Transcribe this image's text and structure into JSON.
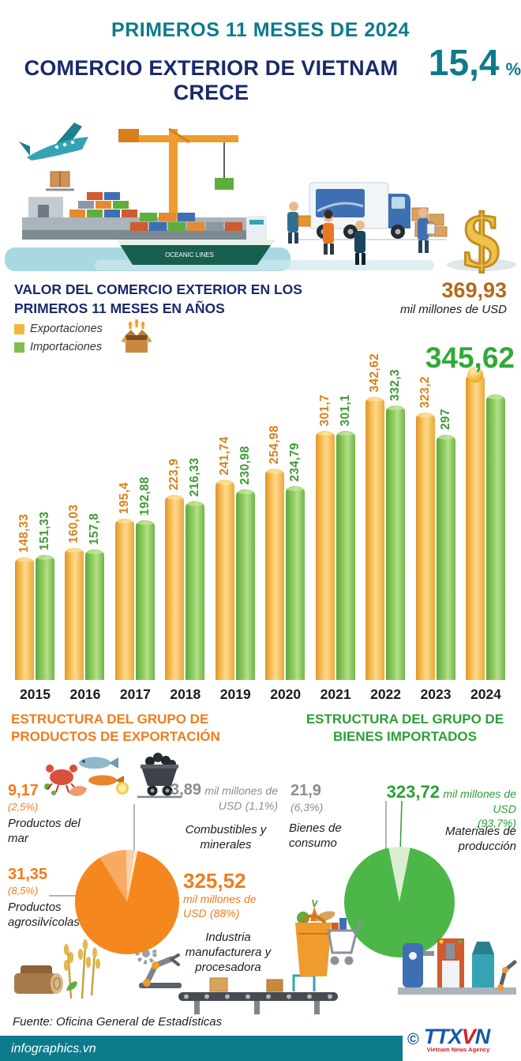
{
  "header": {
    "kicker": "PRIMEROS 11 MESES DE 2024",
    "title": "COMERCIO EXTERIOR DE VIETNAM CRECE",
    "growth_value": "15,4",
    "growth_unit": "%"
  },
  "colors": {
    "teal": "#0d7b8c",
    "navy": "#1b2a6b",
    "export_orange": "#f5b63f",
    "import_green": "#7dbf4e",
    "section_orange": "#f07c1e",
    "section_green": "#2e9e38",
    "top_value_bronze": "#b2691c"
  },
  "illustration": {
    "ship_label": "OCEANIC LINES"
  },
  "chart_section": {
    "title_line1": "VALOR DEL COMERCIO EXTERIOR EN LOS",
    "title_line2": "PRIMEROS 11 MESES EN AÑOS",
    "top_value": "369,93",
    "top_value_unit": "mil millones de USD",
    "big_import_value": "345,62",
    "legend": [
      {
        "label": "Exportaciones",
        "color": "#f5b63f"
      },
      {
        "label": "Importaciones",
        "color": "#7dbf4e"
      }
    ]
  },
  "chart_data": [
    {
      "type": "bar",
      "title": "Valor del comercio exterior en los primeros 11 meses en años",
      "unit": "mil millones de USD",
      "categories": [
        "2015",
        "2016",
        "2017",
        "2018",
        "2019",
        "2020",
        "2021",
        "2022",
        "2023",
        "2024"
      ],
      "series": [
        {
          "name": "Exportaciones",
          "color": "#f5b63f",
          "values": [
            148.33,
            160.03,
            195.4,
            223.9,
            241.74,
            254.98,
            301.7,
            342.62,
            323.2,
            369.93
          ],
          "labels": [
            "148,33",
            "160,03",
            "195,4",
            "223,9",
            "241,74",
            "254,98",
            "301,7",
            "342,62",
            "323,2",
            "369,93"
          ]
        },
        {
          "name": "Importaciones",
          "color": "#7dbf4e",
          "values": [
            151.33,
            157.8,
            192.88,
            216.33,
            230.98,
            234.79,
            301.1,
            332.3,
            297,
            345.62
          ],
          "labels": [
            "151,33",
            "157,8",
            "192,88",
            "216,33",
            "230,98",
            "234,79",
            "301,1",
            "332,3",
            "297",
            "345,62"
          ]
        }
      ],
      "ylim": [
        0,
        375
      ],
      "grid": false,
      "legend_position": "top-left",
      "big_label_indices": [
        9
      ]
    },
    {
      "type": "pie",
      "title": "Estructura del grupo de productos de exportación",
      "unit": "mil millones de USD",
      "start_angle_deg": 11.6,
      "slices": [
        {
          "label": "Industria manufacturera y procesadora",
          "value": 325.52,
          "pct": 88,
          "color": "#f5871f"
        },
        {
          "label": "Productos agrosilvícolas",
          "value": 31.35,
          "pct": 8.5,
          "color": "#f8ab60"
        },
        {
          "label": "Productos del mar",
          "value": 9.17,
          "pct": 2.5,
          "color": "#fbd0a6"
        },
        {
          "label": "Combustibles y minerales",
          "value": 3.89,
          "pct": 1.1,
          "color": "#fde9d4"
        }
      ]
    },
    {
      "type": "pie",
      "title": "Estructura del grupo de bienes importados",
      "unit": "mil millones de USD",
      "start_angle_deg": 11.3,
      "slices": [
        {
          "label": "Materiales de producción",
          "value": 323.72,
          "pct": 93.7,
          "color": "#4cb748"
        },
        {
          "label": "Bienes de consumo",
          "value": 21.9,
          "pct": 6.3,
          "color": "#daeed2"
        }
      ]
    }
  ],
  "export_section": {
    "title_line1": "ESTRUCTURA DEL GRUPO DE",
    "title_line2": "PRODUCTOS DE EXPORTACIÓN",
    "items": [
      {
        "value": "9,17",
        "pct": "(2,5%)",
        "label": "Productos del mar"
      },
      {
        "value": "3,89",
        "unit": "mil millones de USD",
        "pct": "(1,1%)",
        "label": "Combustibles y minerales"
      },
      {
        "value": "31,35",
        "pct": "(8,5%)",
        "label": "Productos agrosilvícolas"
      },
      {
        "value": "325,52",
        "unit": "mil millones de USD",
        "pct": "(88%)",
        "label": "Industria manufacturera y procesadora"
      }
    ]
  },
  "import_section": {
    "title_line1": "ESTRUCTURA DEL GRUPO DE",
    "title_line2": "BIENES IMPORTADOS",
    "items": [
      {
        "value": "21,9",
        "pct": "(6,3%)",
        "label": "Bienes de consumo"
      },
      {
        "value": "323,72",
        "unit": "mil millones de USD",
        "pct": "(93,7%)",
        "label": "Materiales de producción"
      }
    ]
  },
  "footer": {
    "source": "Fuente: Oficina General de Estadísticas",
    "site": "infographics.vn",
    "copyright": "©",
    "logo_t": "TTX",
    "logo_v": "V",
    "logo_n": "N",
    "logo_sub": "Vietnam News Agency"
  }
}
